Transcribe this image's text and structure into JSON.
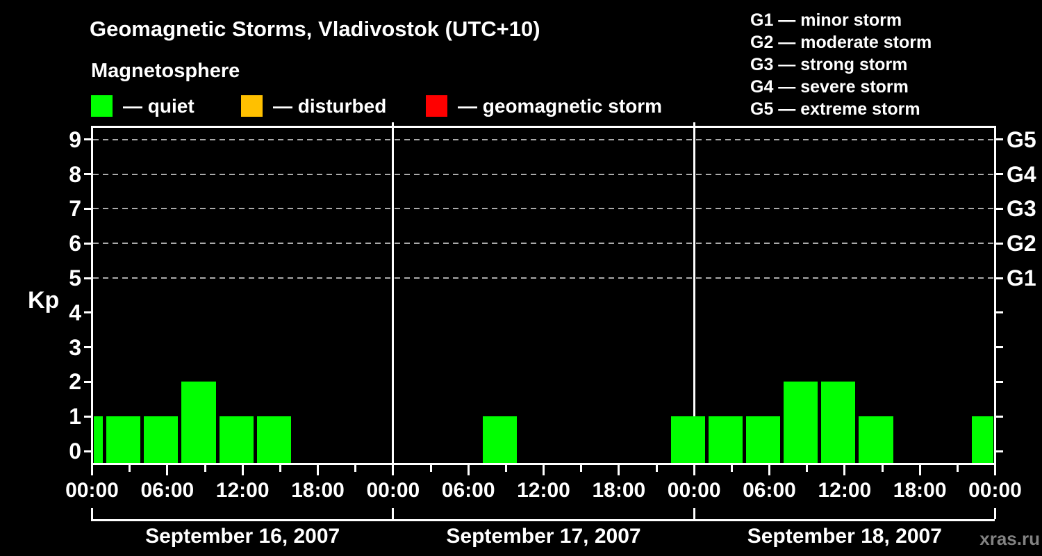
{
  "header": {
    "title": "Geomagnetic Storms, Vladivostok (UTC+10)",
    "subtitle": "Magnetosphere"
  },
  "legend": {
    "items": [
      {
        "name": "quiet",
        "label": "— quiet",
        "swatch_color": "#00ff00"
      },
      {
        "name": "disturbed",
        "label": "— disturbed",
        "swatch_color": "#ffc000"
      },
      {
        "name": "storm",
        "label": "— geomagnetic storm",
        "swatch_color": "#ff0000"
      }
    ]
  },
  "storm_scale_legend": {
    "lines": [
      "G1 — minor storm",
      "G2 — moderate storm",
      "G3 — strong storm",
      "G4 — severe storm",
      "G5 — extreme storm"
    ]
  },
  "watermark": "xras.ru",
  "chart_data": {
    "type": "bar",
    "title": "Geomagnetic Storms, Vladivostok (UTC+10)",
    "subtitle": "Magnetosphere",
    "ylabel": "Kp",
    "yticks": [
      0,
      1,
      2,
      3,
      4,
      5,
      6,
      7,
      8,
      9
    ],
    "ylim": [
      -0.45,
      9.4
    ],
    "grid": "dashed horizontal lines at Kp 5-9 only",
    "grid_kp": [
      5,
      6,
      7,
      8,
      9
    ],
    "right_axis": [
      {
        "label": "G1",
        "kp": 5
      },
      {
        "label": "G2",
        "kp": 6
      },
      {
        "label": "G3",
        "kp": 7
      },
      {
        "label": "G4",
        "kp": 8
      },
      {
        "label": "G5",
        "kp": 9
      }
    ],
    "hours_per_day": 24,
    "x_tick_label_hours": [
      0,
      6,
      12,
      18
    ],
    "x_minor_tick_hours": [
      3,
      9,
      15,
      21
    ],
    "x_tick_labels": [
      "00:00",
      "06:00",
      "12:00",
      "18:00"
    ],
    "x_end_tick_label": "00:00",
    "days": [
      {
        "label": "September 16, 2007"
      },
      {
        "label": "September 17, 2007"
      },
      {
        "label": "September 18, 2007"
      }
    ],
    "bars": [
      {
        "start_hour": 0,
        "end_hour": 1,
        "kp": 1,
        "state": "quiet"
      },
      {
        "start_hour": 1,
        "end_hour": 4,
        "kp": 1,
        "state": "quiet"
      },
      {
        "start_hour": 4,
        "end_hour": 7,
        "kp": 1,
        "state": "quiet"
      },
      {
        "start_hour": 7,
        "end_hour": 10,
        "kp": 2,
        "state": "quiet"
      },
      {
        "start_hour": 10,
        "end_hour": 13,
        "kp": 1,
        "state": "quiet"
      },
      {
        "start_hour": 13,
        "end_hour": 16,
        "kp": 1,
        "state": "quiet"
      },
      {
        "start_hour": 31,
        "end_hour": 34,
        "kp": 1,
        "state": "quiet"
      },
      {
        "start_hour": 46,
        "end_hour": 49,
        "kp": 1,
        "state": "quiet"
      },
      {
        "start_hour": 49,
        "end_hour": 52,
        "kp": 1,
        "state": "quiet"
      },
      {
        "start_hour": 52,
        "end_hour": 55,
        "kp": 1,
        "state": "quiet"
      },
      {
        "start_hour": 55,
        "end_hour": 58,
        "kp": 2,
        "state": "quiet"
      },
      {
        "start_hour": 58,
        "end_hour": 61,
        "kp": 2,
        "state": "quiet"
      },
      {
        "start_hour": 61,
        "end_hour": 64,
        "kp": 1,
        "state": "quiet"
      },
      {
        "start_hour": 70,
        "end_hour": 72,
        "kp": 1,
        "state": "quiet"
      }
    ],
    "state_colors": {
      "quiet": "#00ff00",
      "disturbed": "#ffc000",
      "storm": "#ff0000"
    },
    "colors": {
      "axis": "#ffffff",
      "gridline": "#aaaaaa",
      "background": "#000000",
      "watermark": "#828282"
    }
  }
}
